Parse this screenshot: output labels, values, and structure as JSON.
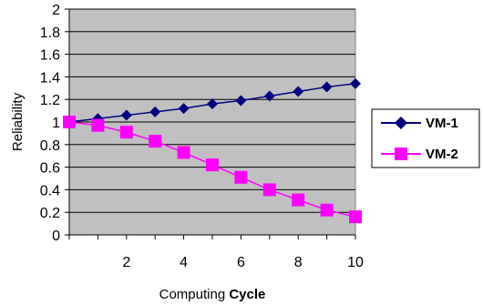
{
  "chart_data": {
    "type": "line",
    "title": "",
    "xlabel": "Computing Cycle",
    "xlabel_parts": [
      "Computing ",
      "Cycle"
    ],
    "ylabel": "Reliability",
    "x": [
      0,
      1,
      2,
      3,
      4,
      5,
      6,
      7,
      8,
      9,
      10
    ],
    "x_tick_labels": [
      "2",
      "4",
      "6",
      "8",
      "10"
    ],
    "x_tick_values": [
      2,
      4,
      6,
      8,
      10
    ],
    "xlim": [
      0,
      10
    ],
    "ylim": [
      0,
      2
    ],
    "y_tick_labels": [
      "0",
      "0.2",
      "0.4",
      "0.6",
      "0.8",
      "1",
      "1.2",
      "1.4",
      "1.6",
      "1.8",
      "2"
    ],
    "y_tick_values": [
      0,
      0.2,
      0.4,
      0.6,
      0.8,
      1,
      1.2,
      1.4,
      1.6,
      1.8,
      2
    ],
    "grid": "horizontal",
    "legend_position": "right",
    "plot_background": "#c0c0c0",
    "series": [
      {
        "name": "VM-1",
        "color": "#000080",
        "marker": "diamond",
        "values": [
          1.0,
          1.03,
          1.06,
          1.09,
          1.12,
          1.16,
          1.19,
          1.23,
          1.27,
          1.31,
          1.34
        ]
      },
      {
        "name": "VM-2",
        "color": "#ff00ff",
        "marker": "square",
        "values": [
          1.0,
          0.97,
          0.91,
          0.83,
          0.73,
          0.62,
          0.51,
          0.4,
          0.31,
          0.22,
          0.16
        ]
      }
    ]
  }
}
